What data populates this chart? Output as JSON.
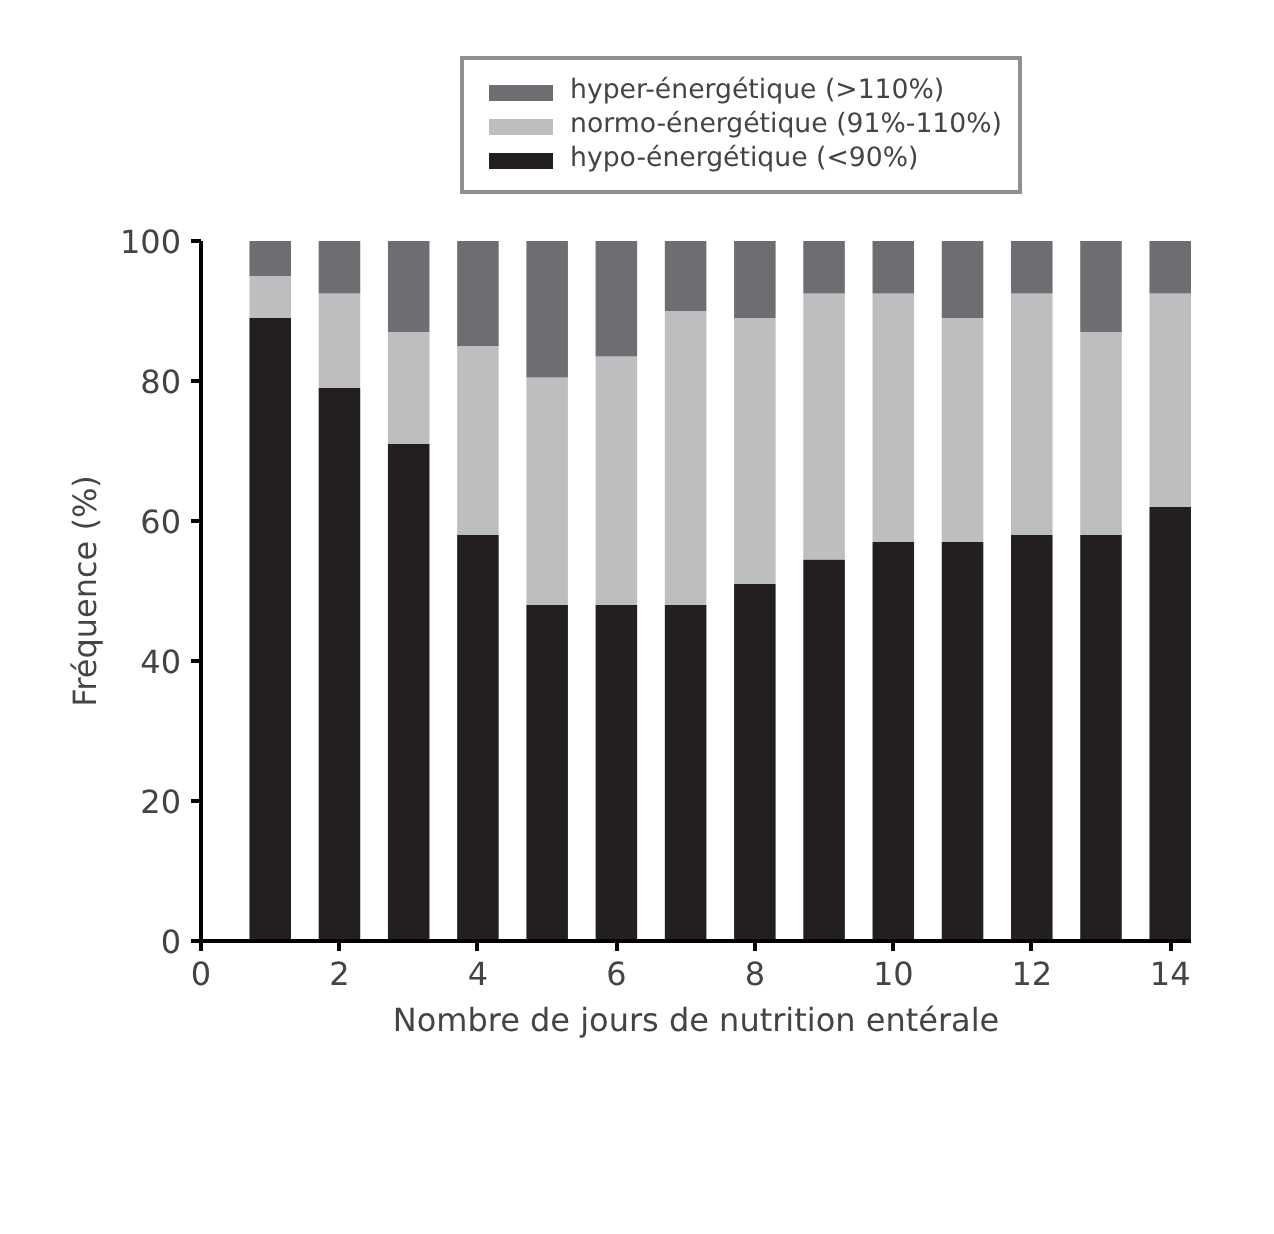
{
  "chart_data": {
    "type": "bar",
    "stacked": true,
    "xlabel": "Nombre de jours de nutrition entérale",
    "ylabel": "Fréquence (%)",
    "x": [
      1,
      2,
      3,
      4,
      5,
      6,
      7,
      8,
      9,
      10,
      11,
      12,
      13,
      14
    ],
    "series": [
      {
        "name": "hypo-énergétique (<90%)",
        "color": "#231f20",
        "values": [
          89,
          79,
          71,
          58,
          48,
          48,
          48,
          51,
          54.5,
          57,
          57,
          58,
          58,
          62
        ]
      },
      {
        "name": "normo-énergétique (91%-110%)",
        "color": "#bcbec0",
        "values": [
          6,
          13.5,
          16,
          27,
          32.5,
          35.5,
          42,
          38,
          38,
          35.5,
          32,
          34.5,
          29,
          30.5
        ]
      },
      {
        "name": "hyper-énergétique (>110%)",
        "color": "#6d6e71",
        "values": [
          5,
          7.5,
          13,
          15,
          19.5,
          16.5,
          10,
          11,
          7.5,
          7.5,
          11,
          7.5,
          13,
          7.5
        ]
      }
    ],
    "xlim": [
      0,
      14.3
    ],
    "ylim": [
      0,
      100
    ],
    "xticks": [
      0,
      2,
      4,
      6,
      8,
      10,
      12,
      14
    ],
    "yticks": [
      0,
      20,
      40,
      60,
      80,
      100
    ],
    "grid": false,
    "legend": "top"
  }
}
